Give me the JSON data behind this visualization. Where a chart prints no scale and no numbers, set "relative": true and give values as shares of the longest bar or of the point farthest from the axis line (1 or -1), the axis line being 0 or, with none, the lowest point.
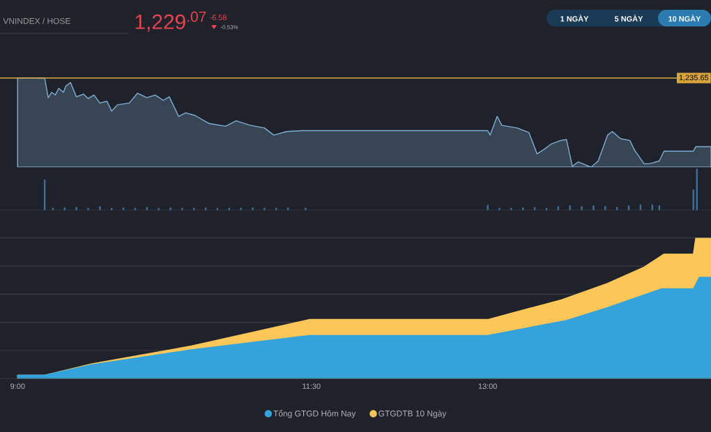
{
  "chart_data": [
    {
      "type": "area",
      "title": "VNINDEX / HOSE",
      "relative": true,
      "color": "#7fb0d6",
      "xlim": [
        8.85,
        14.9
      ],
      "tick_labels": false,
      "x": [
        9.0,
        9.23,
        9.26,
        9.29,
        9.32,
        9.35,
        9.39,
        9.41,
        9.45,
        9.5,
        9.56,
        9.6,
        9.65,
        9.7,
        9.76,
        9.8,
        9.85,
        9.95,
        10.02,
        10.1,
        10.17,
        10.24,
        10.29,
        10.37,
        10.43,
        10.51,
        10.63,
        10.77,
        10.86,
        10.98,
        11.1,
        11.18,
        11.29,
        11.42,
        11.48,
        13.0,
        13.02,
        13.08,
        13.12,
        13.25,
        13.35,
        13.42,
        13.48,
        13.54,
        13.62,
        13.67,
        13.72,
        13.77,
        13.88,
        13.94,
        14.02,
        14.06,
        14.13,
        14.21,
        14.25,
        14.33,
        14.38,
        14.46,
        14.5,
        14.75,
        14.77,
        14.9
      ],
      "values": [
        1.0,
        1.0,
        0.78,
        0.84,
        0.81,
        0.885,
        0.84,
        0.91,
        0.95,
        0.79,
        0.82,
        0.77,
        0.81,
        0.72,
        0.74,
        0.63,
        0.7,
        0.72,
        0.83,
        0.78,
        0.81,
        0.75,
        0.79,
        0.57,
        0.61,
        0.58,
        0.49,
        0.46,
        0.52,
        0.47,
        0.44,
        0.36,
        0.4,
        0.41,
        0.41,
        0.41,
        0.36,
        0.57,
        0.47,
        0.44,
        0.39,
        0.15,
        0.2,
        0.26,
        0.3,
        0.31,
        0.01,
        0.06,
        0,
        0.07,
        0.36,
        0.4,
        0.32,
        0.3,
        0.19,
        0.04,
        0.04,
        0.07,
        0.18,
        0.18,
        0.23,
        0.23
      ],
      "ref_lines": [
        {
          "axis": "y",
          "value": 1,
          "color": "#d9a53b"
        }
      ],
      "annotations": [
        "1,229$^{.07}$",
        "-6.58",
        "-0.53%",
        "1 NGÀY",
        "5 NGÀY",
        "10 NGÀY",
        "1,235.65"
      ]
    },
    {
      "type": "bar",
      "relative": true,
      "color": "#3f6f99",
      "xlim": [
        8.85,
        14.9
      ],
      "tick_labels": false,
      "x": [
        9.23,
        9.3,
        9.4,
        9.5,
        9.6,
        9.7,
        9.8,
        9.9,
        10.0,
        10.1,
        10.2,
        10.3,
        10.4,
        10.5,
        10.6,
        10.7,
        10.8,
        10.9,
        11.0,
        11.1,
        11.2,
        11.3,
        11.45,
        13.0,
        13.1,
        13.2,
        13.3,
        13.4,
        13.5,
        13.6,
        13.7,
        13.8,
        13.9,
        14.0,
        14.1,
        14.2,
        14.3,
        14.4,
        14.46,
        14.75,
        14.78
      ],
      "values": [
        0.74,
        0.06,
        0.07,
        0.08,
        0.06,
        0.1,
        0.06,
        0.07,
        0.06,
        0.08,
        0.06,
        0.07,
        0.06,
        0.06,
        0.07,
        0.06,
        0.06,
        0.06,
        0.07,
        0.06,
        0.06,
        0.07,
        0.06,
        0.13,
        0.06,
        0.06,
        0.07,
        0.08,
        0.06,
        0.1,
        0.12,
        0.1,
        0.12,
        0.1,
        0.08,
        0.12,
        0.14,
        0.14,
        0.12,
        0.5,
        1.0
      ]
    },
    {
      "type": "area",
      "relative": true,
      "xlim": [
        8.85,
        14.9
      ],
      "xticks": [
        {
          "value": 9,
          "label": "9:00"
        },
        {
          "value": 11.5,
          "label": "11:30"
        },
        {
          "value": 13,
          "label": "13:00"
        }
      ],
      "grid": "y",
      "legend": "bottom",
      "tick_labels": "x",
      "series": [
        {
          "name": "Tổng GTGD Hôm Nay",
          "color": "#34a3dc",
          "x": [
            9.0,
            9.23,
            9.63,
            10.48,
            11.48,
            13.0,
            13.67,
            14.02,
            14.48,
            14.75,
            14.8,
            14.9
          ],
          "values": [
            0.024,
            0.024,
            0.099,
            0.205,
            0.307,
            0.307,
            0.413,
            0.505,
            0.638,
            0.638,
            0.72,
            0.72
          ]
        },
        {
          "name": "GTGDTB 10 Ngày",
          "color": "#fcc659",
          "x": [
            9.0,
            9.23,
            9.63,
            10.48,
            11.48,
            13.0,
            13.63,
            14.02,
            14.33,
            14.5,
            14.75,
            14.77,
            14.9
          ],
          "values": [
            0.024,
            0.024,
            0.105,
            0.232,
            0.42,
            0.42,
            0.561,
            0.677,
            0.792,
            0.885,
            0.885,
            1.0,
            1.0
          ]
        }
      ]
    }
  ]
}
